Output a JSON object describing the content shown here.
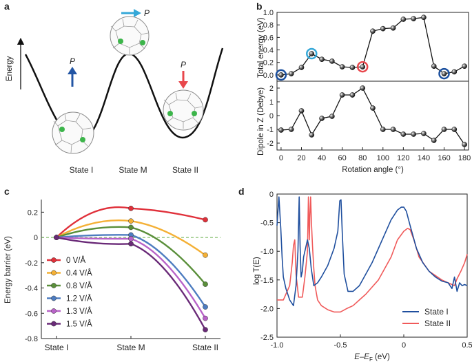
{
  "panels": {
    "a": {
      "letter": "a"
    },
    "b": {
      "letter": "b"
    },
    "c": {
      "letter": "c"
    },
    "d": {
      "letter": "d"
    }
  },
  "schematic": {
    "ylabel": "Energy",
    "states": [
      {
        "label": "State I",
        "color": "#2255a4"
      },
      {
        "label": "State M",
        "color": "#35a8d8"
      },
      {
        "label": "State II",
        "color": "#e8474c"
      }
    ],
    "polarization_label": "P",
    "colors": {
      "curve": "#111111",
      "arrow_state1": "#2255a4",
      "arrow_stateM": "#35a8d8",
      "arrow_state2": "#e8474c",
      "cage": "#8a8a8a",
      "atom": "#3cb54a"
    }
  },
  "chart_data": [
    {
      "id": "b-top",
      "type": "line",
      "ylabel": "Total energy (eV)",
      "x": [
        0,
        10,
        20,
        30,
        40,
        50,
        60,
        70,
        80,
        90,
        100,
        110,
        120,
        130,
        140,
        150,
        160,
        170,
        180
      ],
      "values": [
        0.0,
        0.02,
        0.12,
        0.34,
        0.25,
        0.22,
        0.13,
        0.12,
        0.13,
        0.7,
        0.74,
        0.75,
        0.89,
        0.9,
        0.92,
        0.14,
        0.02,
        0.05,
        0.14
      ],
      "xlim": [
        -4,
        184
      ],
      "ylim": [
        -0.1,
        1.0
      ],
      "yticks": [
        0.0,
        0.2,
        0.4,
        0.6,
        0.8,
        1.0
      ],
      "highlights": [
        {
          "x": 0,
          "color": "#1a4f9e"
        },
        {
          "x": 30,
          "color": "#35a8d8"
        },
        {
          "x": 80,
          "color": "#e8474c"
        },
        {
          "x": 160,
          "color": "#1a4f9e"
        }
      ],
      "colors": {
        "line": "#111111",
        "marker": "#222222"
      }
    },
    {
      "id": "b-bottom",
      "type": "line",
      "xlabel": "Rotation angle (°)",
      "ylabel": "Dipole in Z (Debye)",
      "x": [
        0,
        10,
        20,
        30,
        40,
        50,
        60,
        70,
        80,
        90,
        100,
        110,
        120,
        130,
        140,
        150,
        160,
        170,
        180
      ],
      "values": [
        -1.05,
        -1.0,
        0.35,
        -1.4,
        -0.2,
        -0.05,
        1.5,
        1.5,
        2.0,
        0.55,
        -1.0,
        -1.0,
        -1.35,
        -1.35,
        -1.3,
        -1.8,
        -1.0,
        -1.0,
        -2.1
      ],
      "xlim": [
        -4,
        184
      ],
      "ylim": [
        -2.5,
        2.5
      ],
      "yticks": [
        -2,
        -1,
        0,
        1,
        2
      ],
      "xticks": [
        0,
        20,
        40,
        60,
        80,
        100,
        120,
        140,
        160,
        180
      ],
      "colors": {
        "line": "#111111",
        "marker": "#222222"
      }
    },
    {
      "id": "c",
      "type": "line",
      "ylabel": "Energy barrier (eV)",
      "categories": [
        "State I",
        "State M",
        "State II"
      ],
      "category_colors": [
        "#2255a4",
        "#35a8d8",
        "#e8474c"
      ],
      "ylim": [
        -0.8,
        0.3
      ],
      "yticks": [
        -0.8,
        -0.6,
        -0.4,
        -0.2,
        0,
        0.2
      ],
      "series": [
        {
          "name": "0 V/Å",
          "color": "#e0303a",
          "values": [
            0,
            0.23,
            0.14
          ]
        },
        {
          "name": "0.4 V/Å",
          "color": "#f4b035",
          "values": [
            0,
            0.13,
            -0.14
          ]
        },
        {
          "name": "0.8 V/Å",
          "color": "#5a8f3a",
          "values": [
            0,
            0.08,
            -0.37
          ]
        },
        {
          "name": "1.2 V/Å",
          "color": "#4d7cc0",
          "values": [
            0,
            0.02,
            -0.55
          ]
        },
        {
          "name": "1.3 V/Å",
          "color": "#b862c8",
          "values": [
            0,
            -0.01,
            -0.64
          ]
        },
        {
          "name": "1.5 V/Å",
          "color": "#6a2a78",
          "values": [
            0,
            -0.05,
            -0.73
          ]
        }
      ],
      "zero_line_color": "#6ab04c"
    },
    {
      "id": "d",
      "type": "line",
      "xlabel": "E–E",
      "xlabel_sub": "F",
      "xlabel_unit": " (eV)",
      "ylabel": "log T(E)",
      "xlim": [
        -1.0,
        0.5
      ],
      "ylim": [
        -2.5,
        0.0
      ],
      "xticks": [
        -1.0,
        -0.5,
        0,
        0.5
      ],
      "yticks": [
        -2.5,
        -2.0,
        -1.5,
        -1.0,
        -0.5,
        0
      ],
      "series": [
        {
          "name": "State I",
          "color": "#1f4f9e",
          "x": [
            -1.0,
            -0.985,
            -0.97,
            -0.96,
            -0.95,
            -0.93,
            -0.9,
            -0.87,
            -0.85,
            -0.835,
            -0.825,
            -0.818,
            -0.81,
            -0.8,
            -0.79,
            -0.775,
            -0.76,
            -0.745,
            -0.73,
            -0.71,
            -0.68,
            -0.65,
            -0.6,
            -0.55,
            -0.52,
            -0.505,
            -0.495,
            -0.485,
            -0.47,
            -0.44,
            -0.4,
            -0.35,
            -0.3,
            -0.25,
            -0.2,
            -0.15,
            -0.1,
            -0.05,
            -0.02,
            0.0,
            0.02,
            0.05,
            0.1,
            0.15,
            0.2,
            0.25,
            0.3,
            0.35,
            0.38,
            0.4,
            0.42,
            0.44,
            0.46,
            0.48,
            0.5
          ],
          "y": [
            -0.55,
            -0.05,
            -0.6,
            -1.1,
            -1.45,
            -1.65,
            -1.85,
            -1.95,
            -1.6,
            -1.0,
            -0.05,
            -0.9,
            -1.45,
            -1.35,
            -1.1,
            -0.95,
            -0.8,
            -0.95,
            -1.3,
            -1.6,
            -1.55,
            -1.45,
            -1.25,
            -0.95,
            -0.65,
            -0.12,
            -0.1,
            -0.7,
            -1.4,
            -1.7,
            -1.7,
            -1.6,
            -1.4,
            -1.2,
            -0.95,
            -0.7,
            -0.45,
            -0.28,
            -0.23,
            -0.23,
            -0.3,
            -0.55,
            -0.95,
            -1.2,
            -1.35,
            -1.45,
            -1.52,
            -1.55,
            -1.65,
            -1.45,
            -1.7,
            -1.55,
            -1.6,
            -1.58,
            -1.6
          ]
        },
        {
          "name": "State II",
          "color": "#f05a5a",
          "x": [
            -1.0,
            -0.95,
            -0.9,
            -0.88,
            -0.87,
            -0.86,
            -0.85,
            -0.83,
            -0.8,
            -0.78,
            -0.76,
            -0.752,
            -0.745,
            -0.74,
            -0.735,
            -0.728,
            -0.72,
            -0.71,
            -0.7,
            -0.68,
            -0.65,
            -0.6,
            -0.55,
            -0.5,
            -0.45,
            -0.4,
            -0.35,
            -0.3,
            -0.2,
            -0.1,
            -0.05,
            0.0,
            0.03,
            0.05,
            0.08,
            0.12,
            0.2,
            0.3,
            0.38,
            0.4,
            0.42,
            0.45,
            0.48,
            0.5
          ],
          "y": [
            -1.85,
            -1.85,
            -1.6,
            -1.2,
            -0.9,
            -0.8,
            -1.4,
            -1.8,
            -1.8,
            -1.45,
            -1.0,
            -0.05,
            -0.8,
            -0.35,
            -0.05,
            -0.5,
            -0.9,
            -1.3,
            -1.6,
            -1.85,
            -1.95,
            -2.02,
            -2.06,
            -2.06,
            -2.0,
            -1.95,
            -1.85,
            -1.75,
            -1.5,
            -1.1,
            -0.8,
            -0.65,
            -0.6,
            -0.62,
            -0.8,
            -1.1,
            -1.35,
            -1.5,
            -1.58,
            -1.6,
            -1.48,
            -1.35,
            -1.2,
            -1.05
          ]
        }
      ],
      "legend": "bottom-right"
    }
  ]
}
